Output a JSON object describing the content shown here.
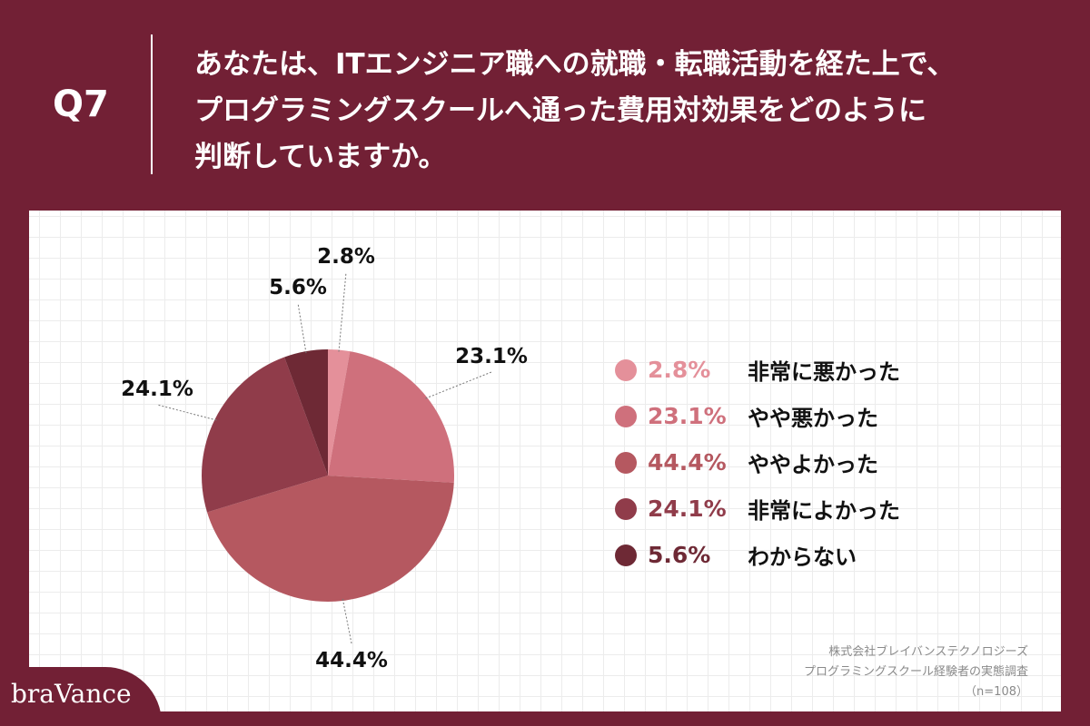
{
  "header": {
    "question_number": "Q7",
    "question_lines": [
      "あなたは、ITエンジニア職への就職・転職活動を経た上で、",
      "プログラミングスクールへ通った費用対効果をどのように",
      "判断していますか。"
    ]
  },
  "chart_data": {
    "type": "pie",
    "start": "top",
    "direction": "clockwise",
    "slices": [
      {
        "label": "非常に悪かった",
        "value": 2.8,
        "value_text": "2.8%",
        "color": "#e4909a"
      },
      {
        "label": "やや悪かった",
        "value": 23.1,
        "value_text": "23.1%",
        "color": "#cf707c"
      },
      {
        "label": "ややよかった",
        "value": 44.4,
        "value_text": "44.4%",
        "color": "#b55860"
      },
      {
        "label": "非常によかった",
        "value": 24.1,
        "value_text": "24.1%",
        "color": "#903c4a"
      },
      {
        "label": "わからない",
        "value": 5.6,
        "value_text": "5.6%",
        "color": "#6e2935"
      }
    ]
  },
  "source": {
    "company": "株式会社ブレイバンステクノロジーズ",
    "survey": "プログラミングスクール経験者の実態調査",
    "sample": "（n=108）"
  },
  "logo": {
    "text": "braVance"
  }
}
